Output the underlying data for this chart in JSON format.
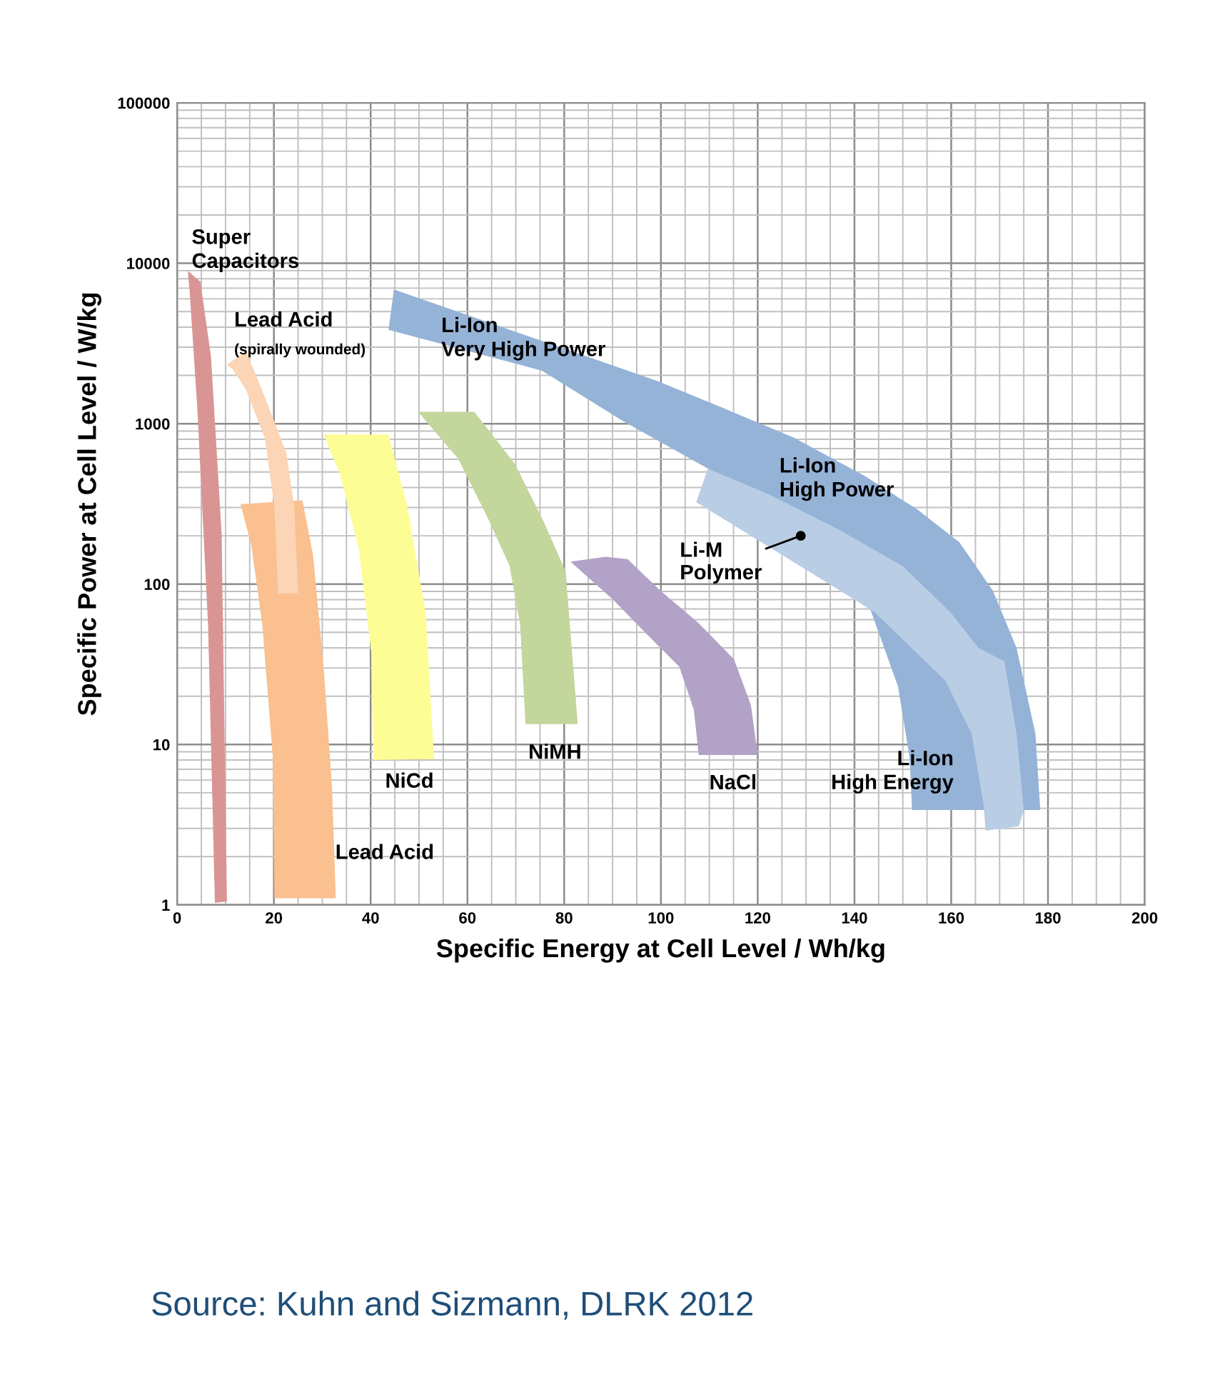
{
  "chart_data": {
    "type": "area",
    "xlabel": "Specific Energy at Cell Level / Wh/kg",
    "ylabel": "Specific Power at Cell Level / W/kg",
    "xlim": [
      0,
      200
    ],
    "xticks": [
      0,
      20,
      40,
      60,
      80,
      100,
      120,
      140,
      160,
      180,
      200
    ],
    "ylim": [
      1,
      100000
    ],
    "yticks": [
      1,
      10,
      100,
      1000,
      10000,
      100000
    ],
    "log": "y",
    "grid": true,
    "legend": false,
    "series": [
      {
        "color": "#d99594",
        "x": [
          2.2,
          4.8,
          7,
          9.2,
          10.3,
          7.8,
          6.4,
          4.2,
          2.6
        ],
        "values": [
          8970,
          7690,
          2620,
          206,
          1.05,
          1.03,
          55,
          1200,
          6600
        ]
      },
      {
        "color": "#fac090",
        "x": [
          13.1,
          25.9,
          28.1,
          30.3,
          32,
          32.8,
          20.1,
          19.8,
          17.6,
          15.3
        ],
        "values": [
          315,
          333,
          151,
          30,
          5.5,
          1.1,
          1.1,
          8.1,
          56,
          177
        ]
      },
      {
        "color": "#fbd5b5",
        "x": [
          10.3,
          14.2,
          15.9,
          19.2,
          22.6,
          24.2,
          25,
          20.9,
          20.1,
          18.1,
          14.2,
          11.4
        ],
        "values": [
          2330,
          2830,
          2150,
          1210,
          655,
          303,
          88,
          87,
          303,
          820,
          1640,
          2200
        ]
      },
      {
        "color": "#fdfd96",
        "x": [
          30.3,
          43.7,
          47.6,
          51.4,
          53.1,
          40.6,
          40.1,
          37.6,
          33.7
        ],
        "values": [
          857,
          857,
          303,
          65,
          8.1,
          8.0,
          38,
          163,
          480
        ]
      },
      {
        "color": "#c3d69b",
        "x": [
          49.8,
          61.4,
          69.8,
          75.9,
          80.3,
          82.8,
          72,
          70.9,
          68.7,
          64.2,
          58.1
        ],
        "values": [
          1185,
          1185,
          563,
          240,
          120,
          13.4,
          13.4,
          56,
          130,
          259,
          604
        ]
      },
      {
        "color": "#b2a2c7",
        "x": [
          81.3,
          88.6,
          93.1,
          99.9,
          107.8,
          115.1,
          118.6,
          120,
          107.8,
          106.8,
          103.8,
          97.9,
          90.1
        ],
        "values": [
          138,
          148,
          143,
          91,
          57,
          34,
          17.6,
          8.6,
          8.6,
          16.5,
          30.5,
          46,
          80
        ]
      },
      {
        "color": "#95b3d7",
        "x": [
          44.8,
          43.7,
          75.4,
          92.1,
          109.7,
          134.3,
          143.1,
          149,
          151.4,
          151.9,
          178.4,
          177.4,
          173.5,
          168.6,
          161.7,
          152.9,
          142.1,
          127.4,
          114.6,
          99.2
        ],
        "values": [
          6860,
          3850,
          2140,
          1040,
          525,
          105,
          72,
          23,
          8.3,
          3.9,
          3.9,
          11.7,
          40,
          91,
          182,
          293,
          473,
          819,
          1190,
          1850
        ]
      },
      {
        "color": "#b9cde5",
        "x": [
          109.7,
          107.3,
          135.3,
          144.1,
          158.8,
          164.2,
          166.7,
          167.1,
          174,
          175,
          173.5,
          171,
          165.6,
          159.8,
          150,
          137.2,
          122.5
        ],
        "values": [
          525,
          324,
          98,
          67,
          25,
          11.7,
          4.2,
          2.9,
          3.1,
          3.9,
          11.7,
          33,
          40,
          67,
          129,
          215,
          360
        ]
      }
    ],
    "annotations": [
      "Super\nCapacitors",
      "Lead Acid",
      "(spirally wounded)",
      "Li-Ion\nVery High Power",
      "Li-Ion\nHigh Power",
      {
        "text": "Li-M\nPolymer",
        "x": 128.9,
        "y": 200
      },
      "Li-Ion\nHigh Energy",
      "NiCd",
      "NiMH",
      "NaCl",
      {
        "text": "Lead Acid",
        "x": 32.7,
        "y": 2.4
      },
      "Source: Kuhn and Sizmann, DLRK 2012"
    ]
  }
}
